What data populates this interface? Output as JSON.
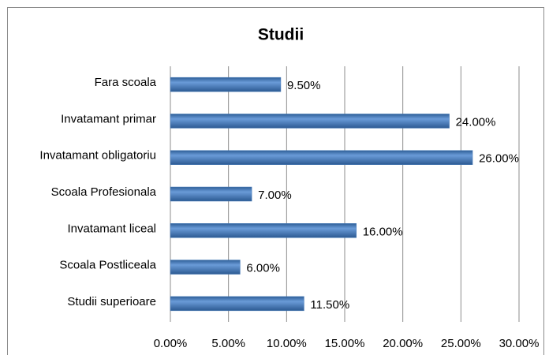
{
  "chart_data": {
    "type": "bar",
    "orientation": "horizontal",
    "title": "Studii",
    "categories": [
      "Fara scoala",
      "Invatamant primar",
      "Invatamant obligatoriu",
      "Scoala Profesionala",
      "Invatamant liceal",
      "Scoala Postliceala",
      "Studii superioare"
    ],
    "values": [
      9.5,
      24,
      26,
      7,
      16,
      6,
      11.5
    ],
    "value_labels": [
      "9.50%",
      "24.00%",
      "26.00%",
      "7.00%",
      "16.00%",
      "6.00%",
      "11.50%"
    ],
    "color": "#4a7ebb",
    "xlim": [
      0,
      30
    ],
    "xticks": [
      {
        "value": 0,
        "label": "0.00%"
      },
      {
        "value": 5,
        "label": "5.00%"
      },
      {
        "value": 10,
        "label": "10.00%"
      },
      {
        "value": 15,
        "label": "15.00%"
      },
      {
        "value": 20,
        "label": "20.00%"
      },
      {
        "value": 25,
        "label": "25.00%"
      },
      {
        "value": 30,
        "label": "30.00%"
      }
    ],
    "grid": true
  }
}
